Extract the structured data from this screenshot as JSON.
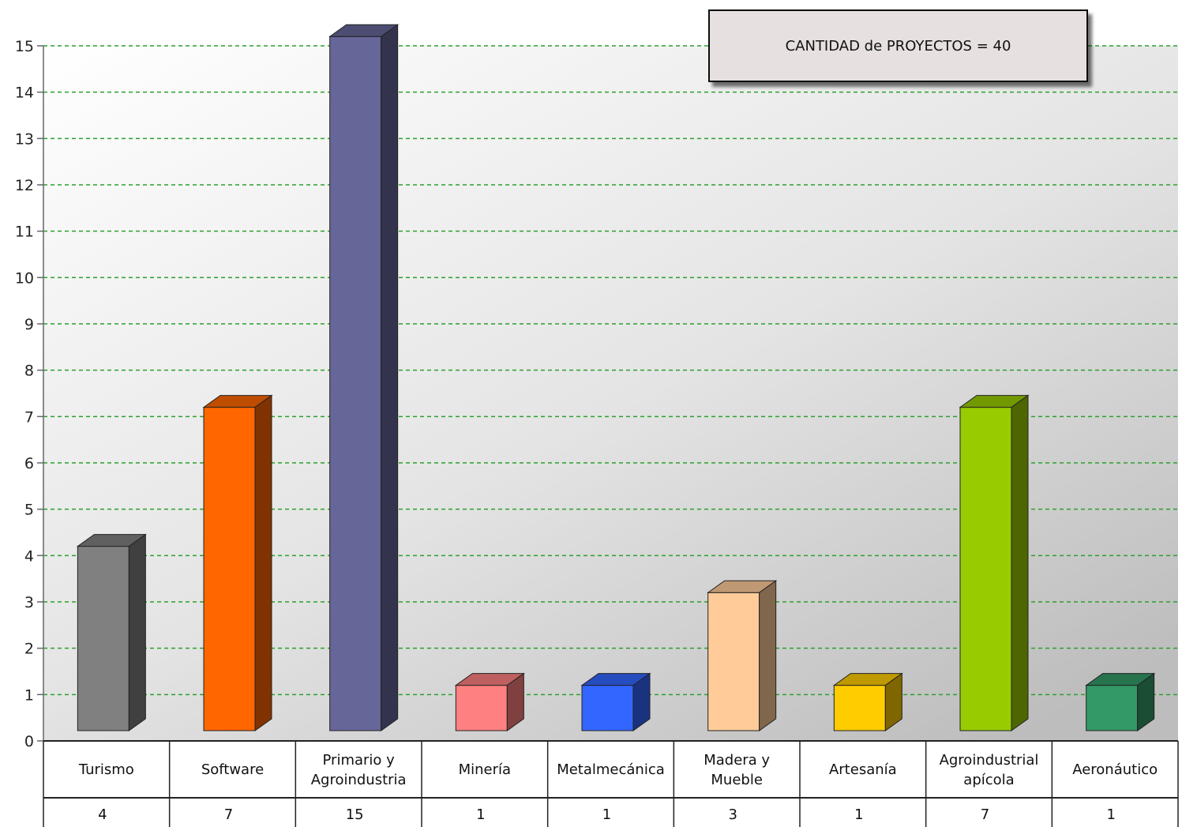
{
  "chart_data": {
    "type": "bar",
    "title": "",
    "xlabel": "",
    "ylabel": "",
    "categories": [
      "Turismo",
      "Software",
      "Primario y Agroindustria",
      "Minería",
      "Metalmecánica",
      "Madera y Mueble",
      "Artesanía",
      "Agroindustrial apícola",
      "Aeronáutico"
    ],
    "values": [
      4,
      7,
      15,
      1,
      1,
      3,
      1,
      7,
      1
    ],
    "value_labels": [
      "4",
      "7",
      "15",
      "1",
      "1",
      "3",
      "1",
      "7",
      "1"
    ],
    "ylim": [
      0,
      15
    ],
    "yticks": [
      "0",
      "1",
      "2",
      "3",
      "4",
      "5",
      "6",
      "7",
      "8",
      "9",
      "10",
      "11",
      "12",
      "13",
      "14",
      "15"
    ],
    "grid": true,
    "grid_color": "#2ca02c",
    "bar_colors": [
      "#808080",
      "#ff6600",
      "#666699",
      "#ff8080",
      "#3366ff",
      "#ffcc99",
      "#ffcc00",
      "#99cc00",
      "#339966"
    ],
    "annotation": "CANTIDAD de PROYECTOS = 40",
    "annotation_placement": "top-right"
  }
}
